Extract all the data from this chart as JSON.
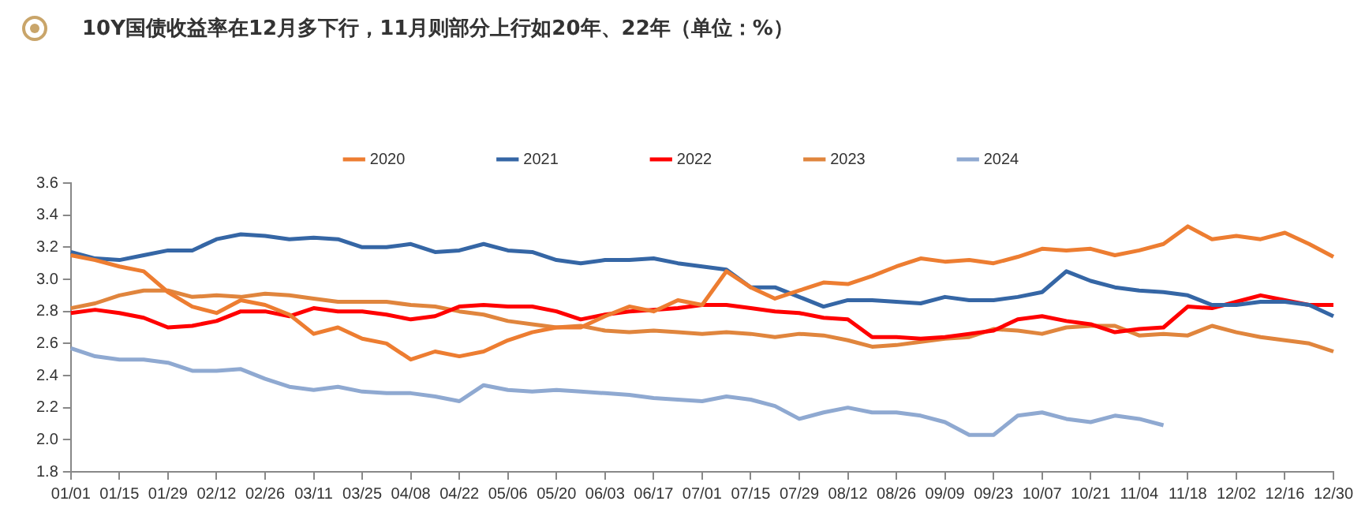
{
  "chart_data": {
    "type": "line",
    "title": "10Y国债收益率在12月多下行，11月则部分上行如20年、22年（单位：%）",
    "categories": [
      "01/01",
      null,
      "01/15",
      null,
      "01/29",
      null,
      "02/12",
      null,
      "02/26",
      null,
      "03/11",
      null,
      "03/25",
      null,
      "04/08",
      null,
      "04/22",
      null,
      "05/06",
      null,
      "05/20",
      null,
      "06/03",
      null,
      "06/17",
      null,
      "07/01",
      null,
      "07/15",
      null,
      "07/29",
      null,
      "08/12",
      null,
      "08/26",
      null,
      "09/09",
      null,
      "09/23",
      null,
      "10/07",
      null,
      "10/21",
      null,
      "11/04",
      null,
      "11/18",
      null,
      "12/02",
      null,
      "12/16",
      null,
      "12/30"
    ],
    "series": [
      {
        "name": "2020",
        "color": "#ed7d31",
        "values": [
          3.15,
          3.12,
          3.08,
          3.05,
          2.92,
          2.83,
          2.79,
          2.87,
          2.84,
          2.78,
          2.66,
          2.7,
          2.63,
          2.6,
          2.5,
          2.55,
          2.52,
          2.55,
          2.62,
          2.67,
          2.7,
          2.7,
          2.77,
          2.83,
          2.8,
          2.87,
          2.84,
          3.05,
          2.95,
          2.88,
          2.93,
          2.98,
          2.97,
          3.02,
          3.08,
          3.13,
          3.11,
          3.12,
          3.1,
          3.14,
          3.19,
          3.18,
          3.19,
          3.15,
          3.18,
          3.22,
          3.33,
          3.25,
          3.27,
          3.25,
          3.29,
          3.22,
          3.14
        ]
      },
      {
        "name": "2021",
        "color": "#3566a5",
        "values": [
          3.17,
          3.13,
          3.12,
          3.15,
          3.18,
          3.18,
          3.25,
          3.28,
          3.27,
          3.25,
          3.26,
          3.25,
          3.2,
          3.2,
          3.22,
          3.17,
          3.18,
          3.22,
          3.18,
          3.17,
          3.12,
          3.1,
          3.12,
          3.12,
          3.13,
          3.1,
          3.08,
          3.06,
          2.95,
          2.95,
          2.89,
          2.83,
          2.87,
          2.87,
          2.86,
          2.85,
          2.89,
          2.87,
          2.87,
          2.89,
          2.92,
          3.05,
          2.99,
          2.95,
          2.93,
          2.92,
          2.9,
          2.84,
          2.84,
          2.86,
          2.86,
          2.84,
          2.77
        ]
      },
      {
        "name": "2022",
        "color": "#ff0000",
        "values": [
          2.79,
          2.81,
          2.79,
          2.76,
          2.7,
          2.71,
          2.74,
          2.8,
          2.8,
          2.77,
          2.82,
          2.8,
          2.8,
          2.78,
          2.75,
          2.77,
          2.83,
          2.84,
          2.83,
          2.83,
          2.8,
          2.75,
          2.78,
          2.8,
          2.81,
          2.82,
          2.84,
          2.84,
          2.82,
          2.8,
          2.79,
          2.76,
          2.75,
          2.64,
          2.64,
          2.63,
          2.64,
          2.66,
          2.68,
          2.75,
          2.77,
          2.74,
          2.72,
          2.67,
          2.69,
          2.7,
          2.83,
          2.82,
          2.86,
          2.9,
          2.87,
          2.84,
          2.84
        ]
      },
      {
        "name": "2023",
        "color": "#e0853d",
        "values": [
          2.82,
          2.85,
          2.9,
          2.93,
          2.93,
          2.89,
          2.9,
          2.89,
          2.91,
          2.9,
          2.88,
          2.86,
          2.86,
          2.86,
          2.84,
          2.83,
          2.8,
          2.78,
          2.74,
          2.72,
          2.7,
          2.71,
          2.68,
          2.67,
          2.68,
          2.67,
          2.66,
          2.67,
          2.66,
          2.64,
          2.66,
          2.65,
          2.62,
          2.58,
          2.59,
          2.61,
          2.63,
          2.64,
          2.69,
          2.68,
          2.66,
          2.7,
          2.71,
          2.71,
          2.65,
          2.66,
          2.65,
          2.71,
          2.67,
          2.64,
          2.62,
          2.6,
          2.55
        ]
      },
      {
        "name": "2024",
        "color": "#8fa9d1",
        "values": [
          2.57,
          2.52,
          2.5,
          2.5,
          2.48,
          2.43,
          2.43,
          2.44,
          2.38,
          2.33,
          2.31,
          2.33,
          2.3,
          2.29,
          2.29,
          2.27,
          2.24,
          2.34,
          2.31,
          2.3,
          2.31,
          2.3,
          2.29,
          2.28,
          2.26,
          2.25,
          2.24,
          2.27,
          2.25,
          2.21,
          2.13,
          2.17,
          2.2,
          2.17,
          2.17,
          2.15,
          2.11,
          2.03,
          2.03,
          2.15,
          2.17,
          2.13,
          2.11,
          2.15,
          2.13,
          2.09,
          null,
          null,
          null,
          null,
          null,
          null,
          null
        ]
      }
    ],
    "ylim": [
      1.8,
      3.6
    ],
    "yticks": [
      1.8,
      {
        "value": 2,
        "label": "2.0"
      },
      2.2,
      2.4,
      2.6,
      2.8,
      {
        "value": 3,
        "label": "3.0"
      },
      3.2,
      3.4,
      3.6
    ],
    "grid": false,
    "legend": "top",
    "marker": "none",
    "line_style": "solid"
  }
}
